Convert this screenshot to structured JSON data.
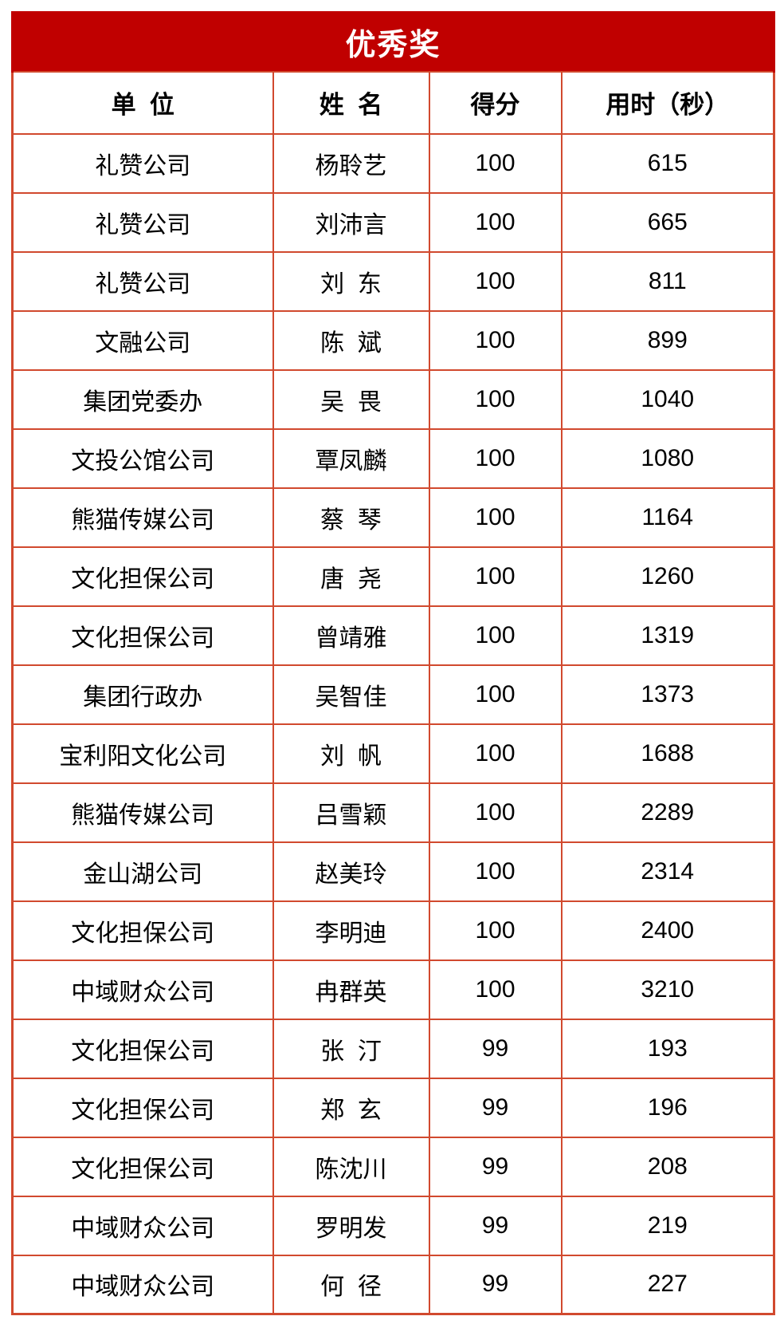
{
  "colors": {
    "title-bg": "#c00000",
    "title-text": "#ffffff",
    "grid-color": "#d1492e",
    "cell-text": "#000000",
    "page-bg": "#ffffff"
  },
  "table": {
    "title": "优秀奖",
    "columns": [
      "单  位",
      "姓  名",
      "得分",
      "用时（秒）"
    ],
    "rows": [
      [
        "礼赞公司",
        "杨聆艺",
        "100",
        "615"
      ],
      [
        "礼赞公司",
        "刘沛言",
        "100",
        "665"
      ],
      [
        "礼赞公司",
        "刘  东",
        "100",
        "811"
      ],
      [
        "文融公司",
        "陈  斌",
        "100",
        "899"
      ],
      [
        "集团党委办",
        "吴  畏",
        "100",
        "1040"
      ],
      [
        "文投公馆公司",
        "覃凤麟",
        "100",
        "1080"
      ],
      [
        "熊猫传媒公司",
        "蔡  琴",
        "100",
        "1164"
      ],
      [
        "文化担保公司",
        "唐  尧",
        "100",
        "1260"
      ],
      [
        "文化担保公司",
        "曾靖雅",
        "100",
        "1319"
      ],
      [
        "集团行政办",
        "吴智佳",
        "100",
        "1373"
      ],
      [
        "宝利阳文化公司",
        "刘  帆",
        "100",
        "1688"
      ],
      [
        "熊猫传媒公司",
        "吕雪颖",
        "100",
        "2289"
      ],
      [
        "金山湖公司",
        "赵美玲",
        "100",
        "2314"
      ],
      [
        "文化担保公司",
        "李明迪",
        "100",
        "2400"
      ],
      [
        "中域财众公司",
        "冉群英",
        "100",
        "3210"
      ],
      [
        "文化担保公司",
        "张  汀",
        "99",
        "193"
      ],
      [
        "文化担保公司",
        "郑  玄",
        "99",
        "196"
      ],
      [
        "文化担保公司",
        "陈沈川",
        "99",
        "208"
      ],
      [
        "中域财众公司",
        "罗明发",
        "99",
        "219"
      ],
      [
        "中域财众公司",
        "何  径",
        "99",
        "227"
      ]
    ]
  }
}
